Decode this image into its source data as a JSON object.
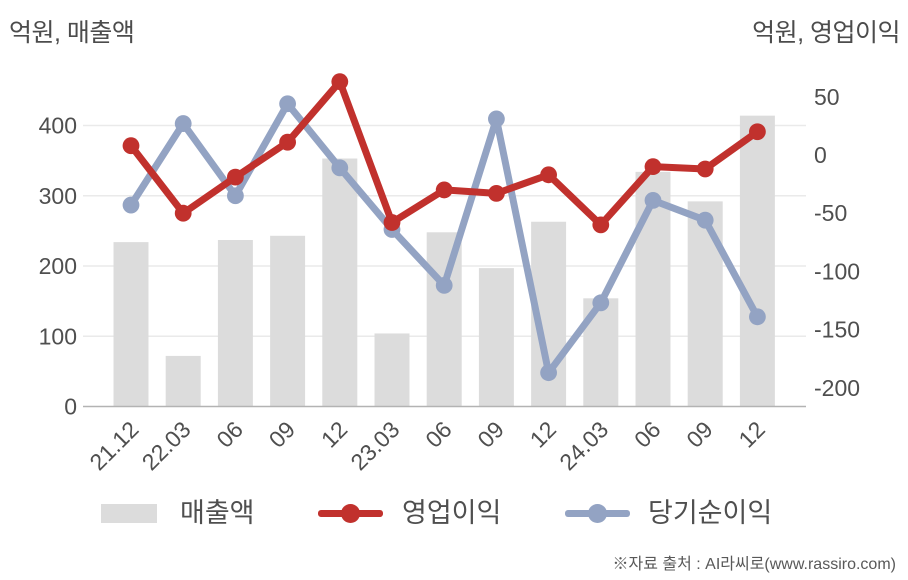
{
  "chart": {
    "left_axis_title": "억원, 매출액",
    "right_axis_title": "억원, 영업이익"
  },
  "chart_data": {
    "type": "combo",
    "categories": [
      "21.12",
      "22.03",
      "06",
      "09",
      "12",
      "23.03",
      "06",
      "09",
      "12",
      "24.03",
      "06",
      "09",
      "12"
    ],
    "series": [
      {
        "name": "매출액",
        "type": "bar",
        "axis": "left",
        "color": "#dcdcdc",
        "values": [
          234,
          72,
          237,
          243,
          353,
          104,
          248,
          197,
          263,
          154,
          334,
          292,
          414
        ]
      },
      {
        "name": "영업이익",
        "type": "line",
        "axis": "right",
        "color": "#c1312d",
        "values": [
          8,
          -50,
          -19,
          11,
          63,
          -58,
          -30,
          -33,
          -17,
          -60,
          -10,
          -12,
          20
        ]
      },
      {
        "name": "당기순이익",
        "type": "line",
        "axis": "right",
        "color": "#93a3c3",
        "values": [
          -43,
          27,
          -35,
          44,
          -11,
          -64,
          -112,
          31,
          -187,
          -127,
          -39,
          -56,
          -139
        ]
      }
    ],
    "left_axis": {
      "label": "억원, 매출액",
      "ticks": [
        400,
        300,
        200,
        100,
        0
      ],
      "range": [
        0,
        470
      ]
    },
    "right_axis": {
      "label": "억원, 영업이익",
      "ticks": [
        50,
        0,
        -50,
        -100,
        -150,
        -200
      ],
      "range": [
        -216,
        66
      ]
    },
    "grid": "horizontal gridlines for left axis",
    "legend_position": "bottom"
  },
  "footer": {
    "source_note": "※자료 출처 : AI라씨로(www.rassiro.com)"
  }
}
